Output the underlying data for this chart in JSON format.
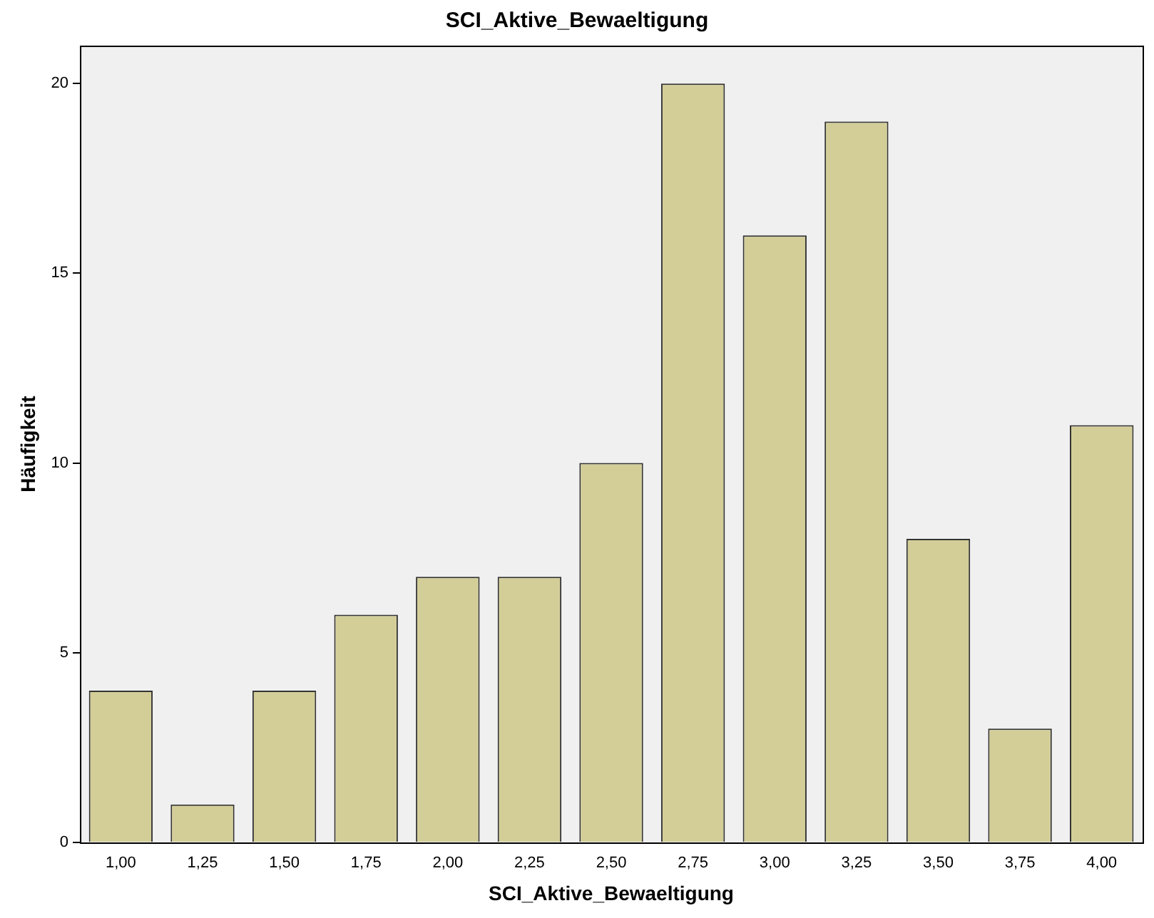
{
  "chart_data": {
    "type": "bar",
    "title": "SCI_Aktive_Bewaeltigung",
    "xlabel": "SCI_Aktive_Bewaeltigung",
    "ylabel": "Häufigkeit",
    "categories": [
      "1,00",
      "1,25",
      "1,50",
      "1,75",
      "2,00",
      "2,25",
      "2,50",
      "2,75",
      "3,00",
      "3,25",
      "3,50",
      "3,75",
      "4,00"
    ],
    "values": [
      4,
      1,
      4,
      6,
      7,
      7,
      10,
      20,
      16,
      19,
      8,
      3,
      11
    ],
    "color": "#d3ce98",
    "ylim": [
      0,
      21
    ],
    "yticks": [
      0,
      5,
      10,
      15,
      20
    ],
    "grid": false,
    "legend": false
  }
}
